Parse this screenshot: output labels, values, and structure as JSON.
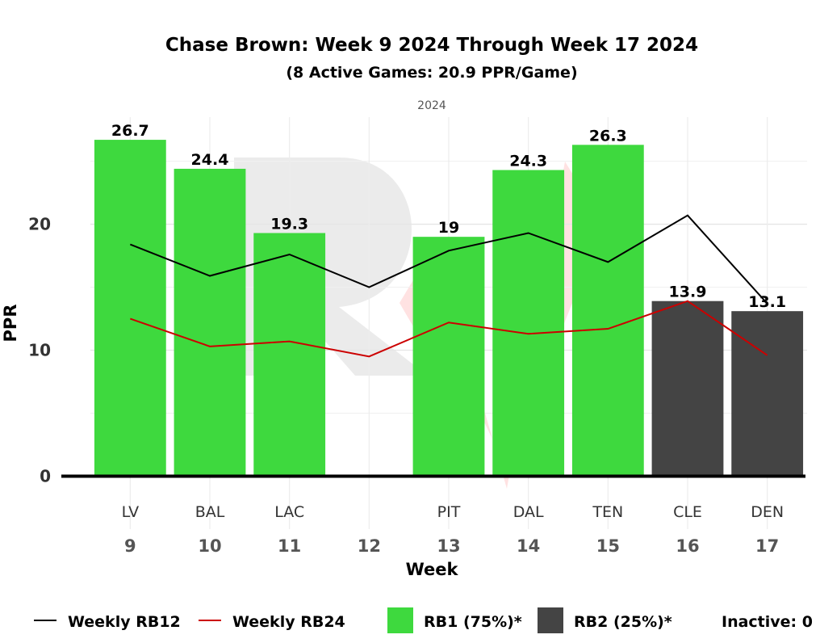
{
  "chart_data": {
    "type": "bar",
    "title": "Chase Brown: Week 9 2024 Through Week 17 2024",
    "subtitle": "(8 Active Games: 20.9 PPR/Game)",
    "facet_label": "2024",
    "xlabel": "Week",
    "ylabel": "PPR",
    "ylim": [
      -4.2,
      28.5
    ],
    "y_ticks": [
      0,
      10,
      20
    ],
    "grid": true,
    "legend_position": "bottom",
    "categories": [
      "9",
      "10",
      "11",
      "12",
      "13",
      "14",
      "15",
      "16",
      "17"
    ],
    "opponents": [
      "LV",
      "BAL",
      "LAC",
      "",
      "PIT",
      "DAL",
      "TEN",
      "CLE",
      "DEN"
    ],
    "bars": [
      {
        "week": "9",
        "value": 26.7,
        "label": "26.7",
        "tier": "RB1"
      },
      {
        "week": "10",
        "value": 24.4,
        "label": "24.4",
        "tier": "RB1"
      },
      {
        "week": "11",
        "value": 19.3,
        "label": "19.3",
        "tier": "RB1"
      },
      {
        "week": "13",
        "value": 19,
        "label": "19",
        "tier": "RB1"
      },
      {
        "week": "14",
        "value": 24.3,
        "label": "24.3",
        "tier": "RB1"
      },
      {
        "week": "15",
        "value": 26.3,
        "label": "26.3",
        "tier": "RB1"
      },
      {
        "week": "16",
        "value": 13.9,
        "label": "13.9",
        "tier": "RB2"
      },
      {
        "week": "17",
        "value": 13.1,
        "label": "13.1",
        "tier": "RB2"
      }
    ],
    "series": [
      {
        "name": "Weekly RB12",
        "color": "#000000",
        "values": [
          18.4,
          15.9,
          17.6,
          15.0,
          17.9,
          19.3,
          17.0,
          20.7,
          13.7
        ]
      },
      {
        "name": "Weekly RB24",
        "color": "#cc0000",
        "values": [
          12.5,
          10.3,
          10.7,
          9.5,
          12.2,
          11.3,
          11.7,
          13.9,
          9.6
        ]
      }
    ],
    "legend": [
      {
        "label": "Weekly RB12",
        "kind": "line",
        "color": "#000000"
      },
      {
        "label": "Weekly RB24",
        "kind": "line",
        "color": "#cc0000"
      },
      {
        "label": "RB1 (75%)*",
        "kind": "box",
        "color": "#3ed93e"
      },
      {
        "label": "RB2 (25%)*",
        "kind": "box",
        "color": "#444444"
      },
      {
        "label": "Inactive: 0",
        "kind": "text",
        "color": "#000000"
      }
    ],
    "colors": {
      "RB1": "#3ed93e",
      "RB2": "#444444"
    }
  }
}
